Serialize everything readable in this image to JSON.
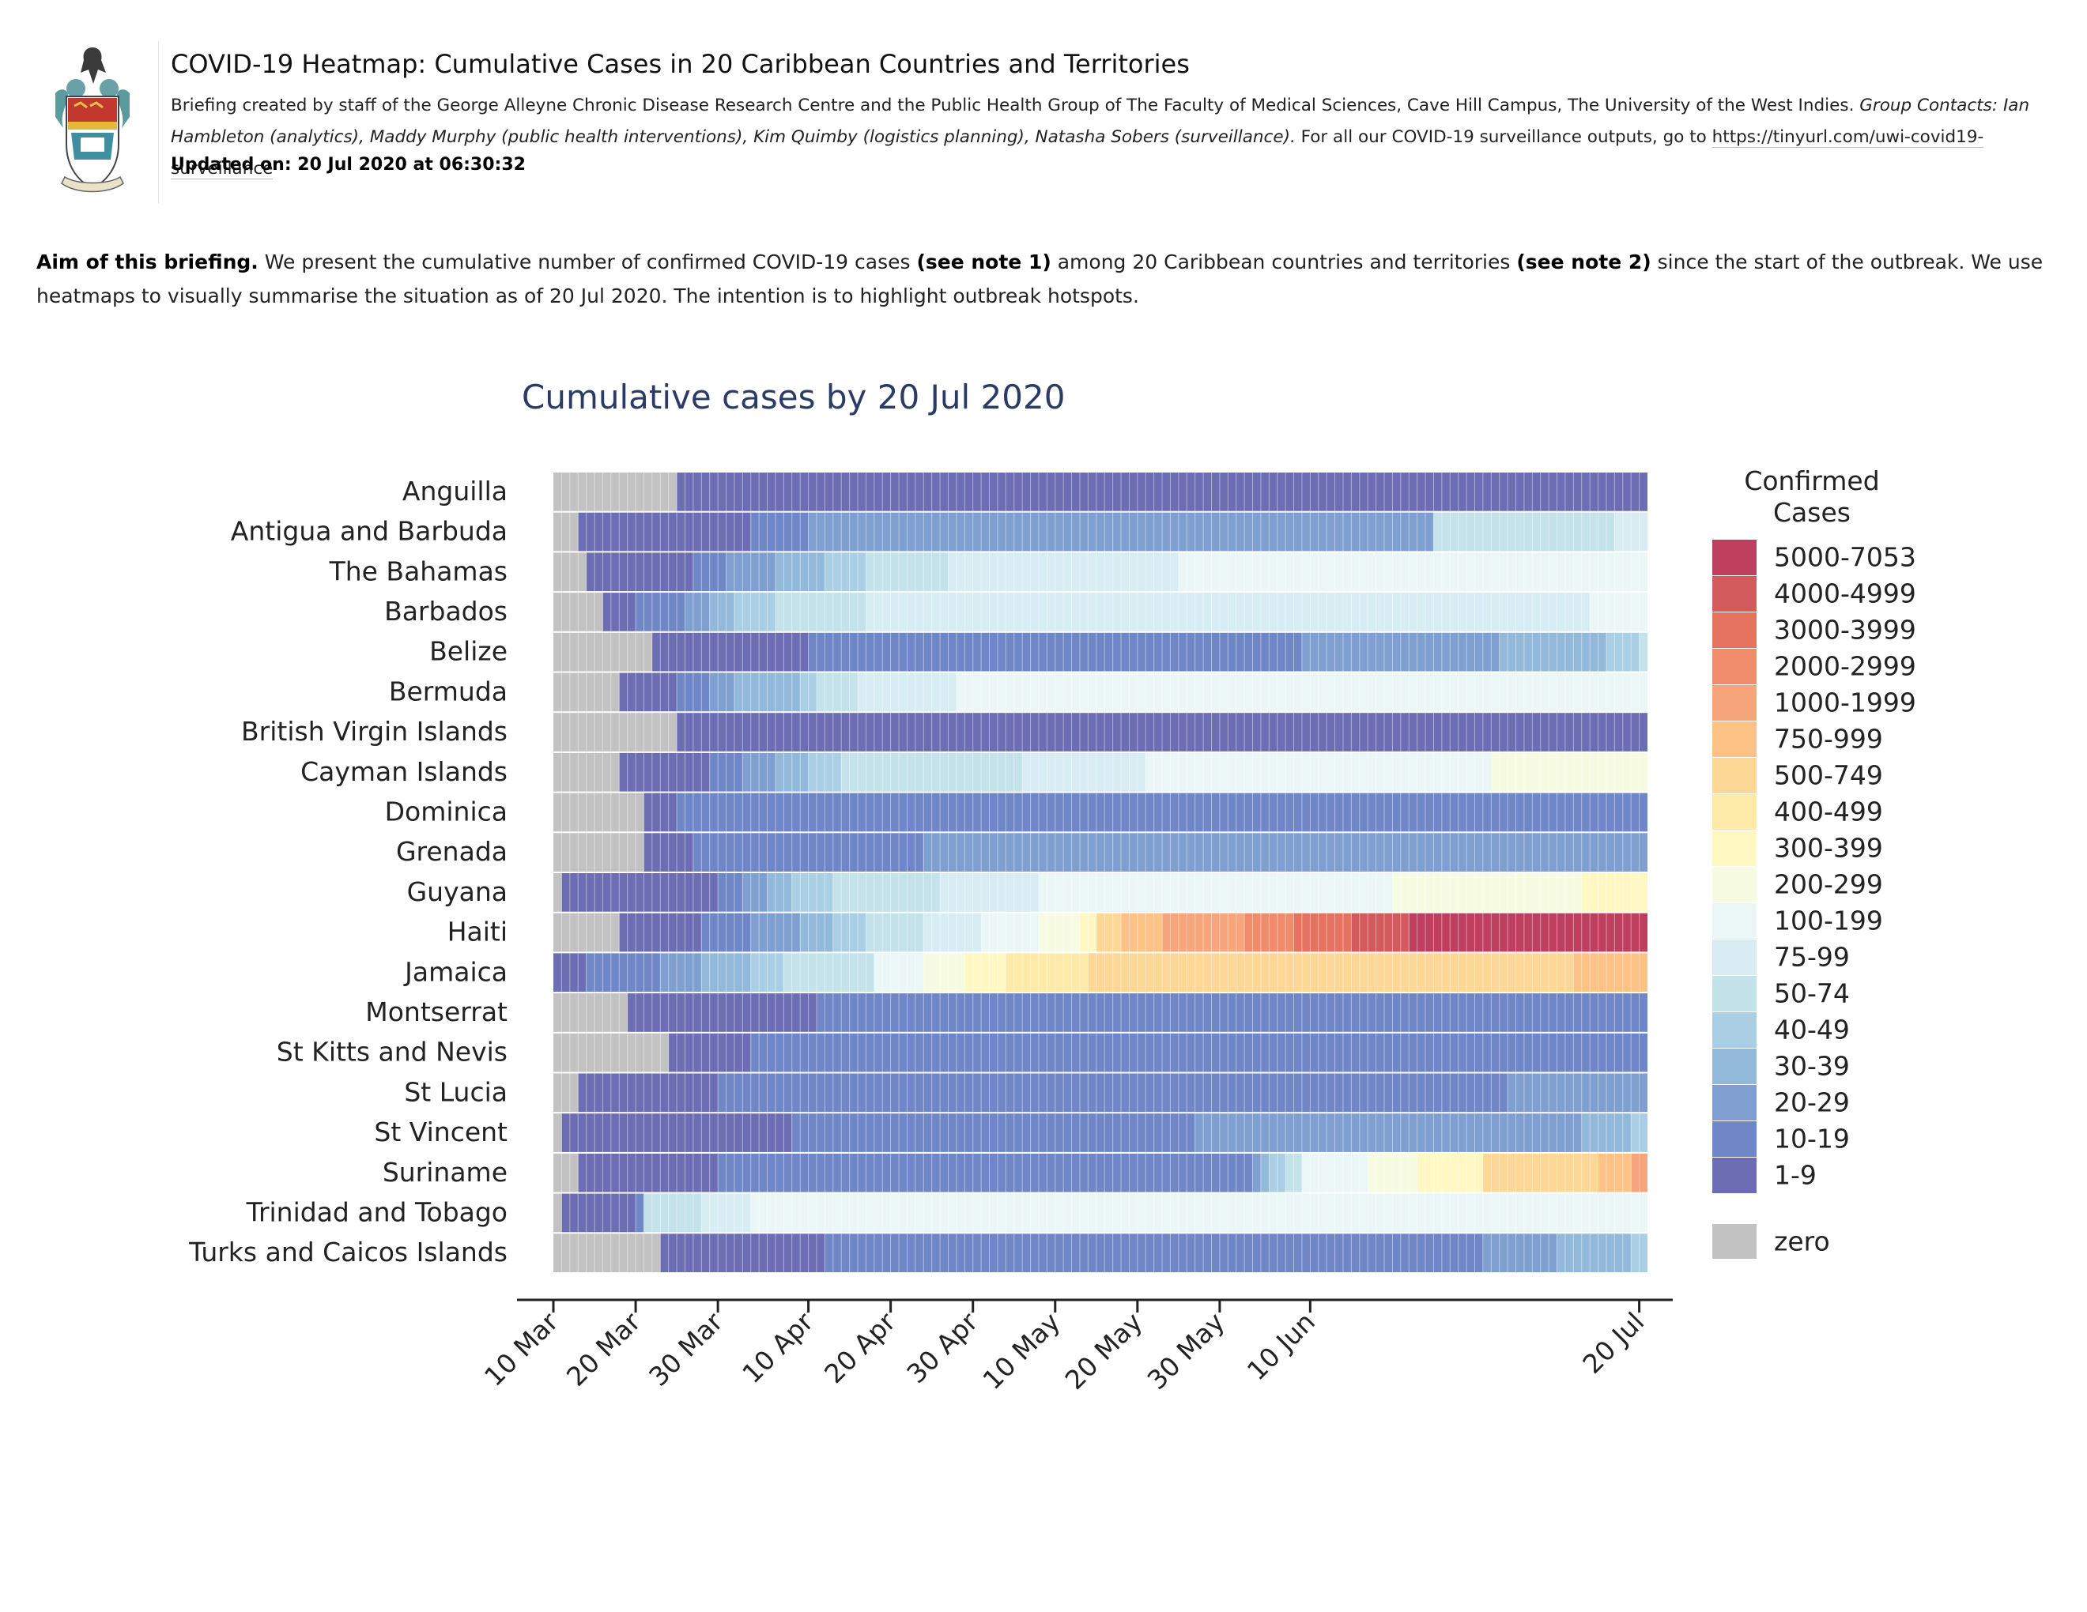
{
  "header": {
    "title": "COVID-19 Heatmap: Cumulative Cases in 20 Caribbean Countries and Territories",
    "byline_text": "Briefing created by staff of the George Alleyne Chronic Disease Research Centre and the Public Health Group of The Faculty of Medical Sciences, Cave Hill Campus, The University of the West Indies. ",
    "byline_contacts": "Group Contacts: Ian Hambleton (analytics), Maddy Murphy (public health interventions), Kim Quimby (logistics planning), Natasha Sobers (surveillance).",
    "byline_more": " For all our COVID-19 surveillance outputs, go to ",
    "link": "https://tinyurl.com/uwi-covid19-surveillance",
    "updated": "Updated on: 20 Jul 2020 at 06:30:32"
  },
  "aim": {
    "label": "Aim of this briefing.",
    "text1": " We present the cumulative number of confirmed COVID-19 cases ",
    "note1": "(see note 1)",
    "text2": " among 20 Caribbean countries and territories ",
    "note2": "(see note 2)",
    "text3": " since the start of the outbreak. We use heatmaps to visually summarise the situation as of 20 Jul 2020. The intention is to highlight outbreak hotspots."
  },
  "chart_data": {
    "type": "heatmap",
    "title": "Cumulative cases by 20 Jul 2020",
    "start_date": "2020-03-10",
    "end_date": "2020-07-20",
    "x_ticks": [
      "10 Mar",
      "20 Mar",
      "30 Mar",
      "10 Apr",
      "20 Apr",
      "30 Apr",
      "10 May",
      "20 May",
      "30 May",
      "10 Jun",
      "20 Jul"
    ],
    "legend_title": "Confirmed Cases",
    "legend_position": "right",
    "legend_labels": [
      "5000-7053",
      "4000-4999",
      "3000-3999",
      "2000-2999",
      "1000-1999",
      "750-999",
      "500-749",
      "400-499",
      "300-399",
      "200-299",
      "100-199",
      "75-99",
      "50-74",
      "40-49",
      "30-39",
      "20-29",
      "10-19",
      "1-9"
    ],
    "zero_label": "zero",
    "colors": [
      "#bf3f5f",
      "#d35a5d",
      "#e6735f",
      "#f08b6c",
      "#f7a57a",
      "#fdc285",
      "#fdd796",
      "#feeaa8",
      "#fff8c2",
      "#f6fbe2",
      "#ebf6f6",
      "#d8edf3",
      "#c3e2ea",
      "#aacfe5",
      "#93b9da",
      "#7e9fd0",
      "#7087c7",
      "#6c6db3"
    ],
    "zero_color": "#c2c2c2",
    "countries": [
      "Anguilla",
      "Antigua and Barbuda",
      "The Bahamas",
      "Barbados",
      "Belize",
      "Bermuda",
      "British Virgin Islands",
      "Cayman Islands",
      "Dominica",
      "Grenada",
      "Guyana",
      "Haiti",
      "Jamaica",
      "Montserrat",
      "St Kitts and Nevis",
      "St Lucia",
      "St Vincent",
      "Suriname",
      "Trinidad and Tobago",
      "Turks and Caicos Islands"
    ],
    "series": [
      {
        "name": "Anguilla",
        "segments": [
          [
            "2020-03-10",
            "zero"
          ],
          [
            "2020-03-25",
            "1-9"
          ]
        ]
      },
      {
        "name": "Antigua and Barbuda",
        "segments": [
          [
            "2020-03-10",
            "zero"
          ],
          [
            "2020-03-13",
            "1-9"
          ],
          [
            "2020-04-03",
            "10-19"
          ],
          [
            "2020-04-10",
            "20-29"
          ],
          [
            "2020-06-25",
            "50-74"
          ],
          [
            "2020-07-17",
            "75-99"
          ]
        ]
      },
      {
        "name": "The Bahamas",
        "segments": [
          [
            "2020-03-10",
            "zero"
          ],
          [
            "2020-03-14",
            "1-9"
          ],
          [
            "2020-03-27",
            "10-19"
          ],
          [
            "2020-03-31",
            "20-29"
          ],
          [
            "2020-04-06",
            "30-39"
          ],
          [
            "2020-04-12",
            "40-49"
          ],
          [
            "2020-04-17",
            "50-74"
          ],
          [
            "2020-04-27",
            "75-99"
          ],
          [
            "2020-05-25",
            "100-199"
          ]
        ]
      },
      {
        "name": "Barbados",
        "segments": [
          [
            "2020-03-10",
            "zero"
          ],
          [
            "2020-03-16",
            "1-9"
          ],
          [
            "2020-03-20",
            "10-19"
          ],
          [
            "2020-03-26",
            "20-29"
          ],
          [
            "2020-03-29",
            "30-39"
          ],
          [
            "2020-04-01",
            "40-49"
          ],
          [
            "2020-04-06",
            "50-74"
          ],
          [
            "2020-04-17",
            "75-99"
          ],
          [
            "2020-07-14",
            "100-199"
          ]
        ]
      },
      {
        "name": "Belize",
        "segments": [
          [
            "2020-03-10",
            "zero"
          ],
          [
            "2020-03-22",
            "1-9"
          ],
          [
            "2020-04-10",
            "10-19"
          ],
          [
            "2020-06-09",
            "20-29"
          ],
          [
            "2020-07-03",
            "30-39"
          ],
          [
            "2020-07-16",
            "40-49"
          ],
          [
            "2020-07-20",
            "50-74"
          ]
        ]
      },
      {
        "name": "Bermuda",
        "segments": [
          [
            "2020-03-10",
            "zero"
          ],
          [
            "2020-03-18",
            "1-9"
          ],
          [
            "2020-03-25",
            "10-19"
          ],
          [
            "2020-03-29",
            "20-29"
          ],
          [
            "2020-04-01",
            "30-39"
          ],
          [
            "2020-04-09",
            "40-49"
          ],
          [
            "2020-04-11",
            "50-74"
          ],
          [
            "2020-04-16",
            "75-99"
          ],
          [
            "2020-04-28",
            "100-199"
          ]
        ]
      },
      {
        "name": "British Virgin Islands",
        "segments": [
          [
            "2020-03-10",
            "zero"
          ],
          [
            "2020-03-25",
            "1-9"
          ]
        ]
      },
      {
        "name": "Cayman Islands",
        "segments": [
          [
            "2020-03-10",
            "zero"
          ],
          [
            "2020-03-18",
            "1-9"
          ],
          [
            "2020-03-29",
            "10-19"
          ],
          [
            "2020-04-02",
            "20-29"
          ],
          [
            "2020-04-06",
            "30-39"
          ],
          [
            "2020-04-10",
            "40-49"
          ],
          [
            "2020-04-14",
            "50-74"
          ],
          [
            "2020-05-06",
            "75-99"
          ],
          [
            "2020-05-21",
            "100-199"
          ],
          [
            "2020-07-02",
            "200-299"
          ]
        ]
      },
      {
        "name": "Dominica",
        "segments": [
          [
            "2020-03-10",
            "zero"
          ],
          [
            "2020-03-21",
            "1-9"
          ],
          [
            "2020-03-25",
            "10-19"
          ]
        ]
      },
      {
        "name": "Grenada",
        "segments": [
          [
            "2020-03-10",
            "zero"
          ],
          [
            "2020-03-21",
            "1-9"
          ],
          [
            "2020-03-27",
            "10-19"
          ],
          [
            "2020-04-24",
            "20-29"
          ]
        ]
      },
      {
        "name": "Guyana",
        "segments": [
          [
            "2020-03-10",
            "zero"
          ],
          [
            "2020-03-11",
            "1-9"
          ],
          [
            "2020-03-30",
            "10-19"
          ],
          [
            "2020-04-02",
            "20-29"
          ],
          [
            "2020-04-05",
            "30-39"
          ],
          [
            "2020-04-08",
            "40-49"
          ],
          [
            "2020-04-13",
            "50-74"
          ],
          [
            "2020-04-26",
            "75-99"
          ],
          [
            "2020-05-08",
            "100-199"
          ],
          [
            "2020-06-20",
            "200-299"
          ],
          [
            "2020-07-13",
            "300-399"
          ]
        ]
      },
      {
        "name": "Haiti",
        "segments": [
          [
            "2020-03-10",
            "zero"
          ],
          [
            "2020-03-18",
            "1-9"
          ],
          [
            "2020-03-28",
            "10-19"
          ],
          [
            "2020-04-03",
            "20-29"
          ],
          [
            "2020-04-09",
            "30-39"
          ],
          [
            "2020-04-13",
            "40-49"
          ],
          [
            "2020-04-17",
            "50-74"
          ],
          [
            "2020-04-24",
            "75-99"
          ],
          [
            "2020-05-01",
            "100-199"
          ],
          [
            "2020-05-08",
            "200-299"
          ],
          [
            "2020-05-13",
            "300-399"
          ],
          [
            "2020-05-15",
            "500-749"
          ],
          [
            "2020-05-18",
            "750-999"
          ],
          [
            "2020-05-23",
            "1000-1999"
          ],
          [
            "2020-06-02",
            "2000-2999"
          ],
          [
            "2020-06-08",
            "3000-3999"
          ],
          [
            "2020-06-15",
            "4000-4999"
          ],
          [
            "2020-06-22",
            "5000-7053"
          ]
        ]
      },
      {
        "name": "Jamaica",
        "segments": [
          [
            "2020-03-10",
            "1-9"
          ],
          [
            "2020-03-14",
            "10-19"
          ],
          [
            "2020-03-23",
            "20-29"
          ],
          [
            "2020-03-28",
            "30-39"
          ],
          [
            "2020-04-03",
            "40-49"
          ],
          [
            "2020-04-07",
            "50-74"
          ],
          [
            "2020-04-18",
            "100-199"
          ],
          [
            "2020-04-24",
            "200-299"
          ],
          [
            "2020-04-29",
            "300-399"
          ],
          [
            "2020-05-04",
            "400-499"
          ],
          [
            "2020-05-14",
            "500-749"
          ],
          [
            "2020-07-12",
            "750-999"
          ]
        ]
      },
      {
        "name": "Montserrat",
        "segments": [
          [
            "2020-03-10",
            "zero"
          ],
          [
            "2020-03-19",
            "1-9"
          ],
          [
            "2020-04-11",
            "10-19"
          ]
        ]
      },
      {
        "name": "St Kitts and Nevis",
        "segments": [
          [
            "2020-03-10",
            "zero"
          ],
          [
            "2020-03-24",
            "1-9"
          ],
          [
            "2020-04-03",
            "10-19"
          ]
        ]
      },
      {
        "name": "St Lucia",
        "segments": [
          [
            "2020-03-10",
            "zero"
          ],
          [
            "2020-03-13",
            "1-9"
          ],
          [
            "2020-03-30",
            "10-19"
          ],
          [
            "2020-07-04",
            "20-29"
          ]
        ]
      },
      {
        "name": "St Vincent",
        "segments": [
          [
            "2020-03-10",
            "zero"
          ],
          [
            "2020-03-11",
            "1-9"
          ],
          [
            "2020-04-08",
            "10-19"
          ],
          [
            "2020-05-27",
            "20-29"
          ],
          [
            "2020-07-13",
            "30-39"
          ],
          [
            "2020-07-19",
            "40-49"
          ]
        ]
      },
      {
        "name": "Suriname",
        "segments": [
          [
            "2020-03-10",
            "zero"
          ],
          [
            "2020-03-13",
            "1-9"
          ],
          [
            "2020-03-30",
            "10-19"
          ],
          [
            "2020-06-03",
            "20-29"
          ],
          [
            "2020-06-04",
            "30-39"
          ],
          [
            "2020-06-05",
            "40-49"
          ],
          [
            "2020-06-07",
            "50-74"
          ],
          [
            "2020-06-09",
            "100-199"
          ],
          [
            "2020-06-17",
            "200-299"
          ],
          [
            "2020-06-23",
            "300-399"
          ],
          [
            "2020-07-01",
            "500-749"
          ],
          [
            "2020-07-15",
            "750-999"
          ],
          [
            "2020-07-19",
            "1000-1999"
          ]
        ]
      },
      {
        "name": "Trinidad and Tobago",
        "segments": [
          [
            "2020-03-10",
            "zero"
          ],
          [
            "2020-03-11",
            "1-9"
          ],
          [
            "2020-03-20",
            "10-19"
          ],
          [
            "2020-03-21",
            "50-74"
          ],
          [
            "2020-03-28",
            "75-99"
          ],
          [
            "2020-04-03",
            "100-199"
          ]
        ]
      },
      {
        "name": "Turks and Caicos Islands",
        "segments": [
          [
            "2020-03-10",
            "zero"
          ],
          [
            "2020-03-23",
            "1-9"
          ],
          [
            "2020-04-12",
            "10-19"
          ],
          [
            "2020-07-01",
            "20-29"
          ],
          [
            "2020-07-10",
            "30-39"
          ],
          [
            "2020-07-19",
            "40-49"
          ]
        ]
      }
    ]
  }
}
